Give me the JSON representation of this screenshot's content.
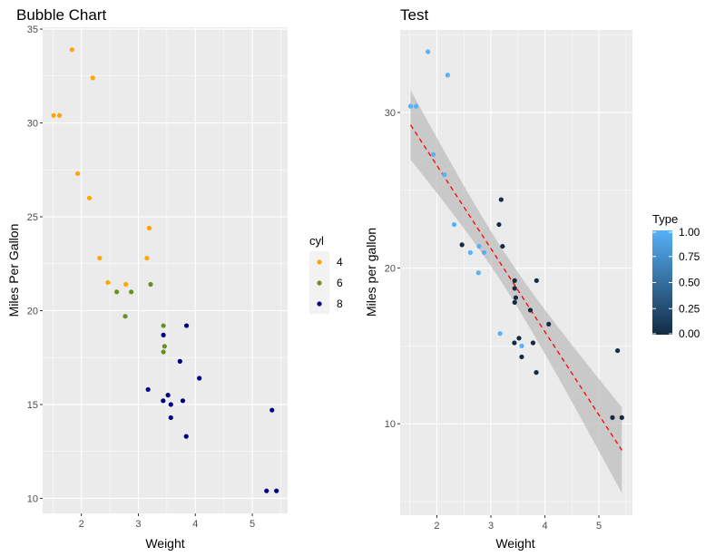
{
  "chart_data": [
    {
      "type": "scatter",
      "title": "Bubble Chart",
      "xlabel": "Weight",
      "ylabel": "Miles Per Gallon",
      "xlim": [
        1.32,
        5.62
      ],
      "ylim": [
        9.2,
        35.1
      ],
      "xticks": [
        2,
        3,
        4,
        5
      ],
      "yticks": [
        10,
        15,
        20,
        25,
        30,
        35
      ],
      "grid": true,
      "legend": {
        "title": "cyl",
        "position": "right",
        "entries": [
          "4",
          "6",
          "8"
        ],
        "colors": [
          "#FFA500",
          "#6B8E23",
          "#000080"
        ]
      },
      "points": {
        "x": [
          2.62,
          2.875,
          2.32,
          3.215,
          3.44,
          3.46,
          3.57,
          3.19,
          3.15,
          3.44,
          3.44,
          4.07,
          3.73,
          3.78,
          5.25,
          5.424,
          5.345,
          2.2,
          1.615,
          1.835,
          2.465,
          3.52,
          3.435,
          3.84,
          3.845,
          1.935,
          2.14,
          1.513,
          3.17,
          2.77,
          3.57,
          2.78
        ],
        "y": [
          21.0,
          21.0,
          22.8,
          21.4,
          18.7,
          18.1,
          14.3,
          24.4,
          22.8,
          19.2,
          17.8,
          16.4,
          17.3,
          15.2,
          10.4,
          10.4,
          14.7,
          32.4,
          30.4,
          33.9,
          21.5,
          15.5,
          15.2,
          13.3,
          19.2,
          27.3,
          26.0,
          30.4,
          15.8,
          19.7,
          15.0,
          21.4
        ],
        "cyl": [
          "6",
          "6",
          "4",
          "6",
          "8",
          "6",
          "8",
          "4",
          "4",
          "6",
          "6",
          "8",
          "8",
          "8",
          "8",
          "8",
          "8",
          "4",
          "4",
          "4",
          "4",
          "8",
          "8",
          "8",
          "8",
          "4",
          "4",
          "4",
          "8",
          "6",
          "8",
          "4"
        ]
      }
    },
    {
      "type": "scatter",
      "title": "Test",
      "xlabel": "Weight",
      "ylabel": "Miles per gallon",
      "xlim": [
        1.32,
        5.62
      ],
      "ylim": [
        4.13,
        35.3
      ],
      "xticks": [
        2,
        3,
        4,
        5
      ],
      "yticks": [
        10,
        20,
        30
      ],
      "grid": true,
      "legend": {
        "title": "Type",
        "position": "right",
        "type": "colorbar",
        "ticks": [
          "0.00",
          "0.25",
          "0.50",
          "0.75",
          "1.00"
        ],
        "low_color": "#132B43",
        "high_color": "#56B1F7"
      },
      "fit": {
        "method": "linear",
        "intercept": 37.285,
        "slope": -5.344,
        "line_color": "#FF0000",
        "line_style": "dashed",
        "confidence_band": true,
        "band_color": "#BEBEBE"
      },
      "points": {
        "x": [
          2.62,
          2.875,
          2.32,
          3.215,
          3.44,
          3.46,
          3.57,
          3.19,
          3.15,
          3.44,
          3.44,
          4.07,
          3.73,
          3.78,
          5.25,
          5.424,
          5.345,
          2.2,
          1.615,
          1.835,
          2.465,
          3.52,
          3.435,
          3.84,
          3.845,
          1.935,
          2.14,
          1.513,
          3.17,
          2.77,
          3.57,
          2.78
        ],
        "y": [
          21.0,
          21.0,
          22.8,
          21.4,
          18.7,
          18.1,
          14.3,
          24.4,
          22.8,
          19.2,
          17.8,
          16.4,
          17.3,
          15.2,
          10.4,
          10.4,
          14.7,
          32.4,
          30.4,
          33.9,
          21.5,
          15.5,
          15.2,
          13.3,
          19.2,
          27.3,
          26.0,
          30.4,
          15.8,
          19.7,
          15.0,
          21.4
        ],
        "type": [
          1,
          1,
          1,
          0,
          0,
          0,
          0,
          0,
          0,
          0,
          0,
          0,
          0,
          0,
          0,
          0,
          0,
          1,
          1,
          1,
          0,
          0,
          0,
          0,
          0,
          1,
          1,
          1,
          1,
          1,
          1,
          1
        ]
      }
    }
  ]
}
